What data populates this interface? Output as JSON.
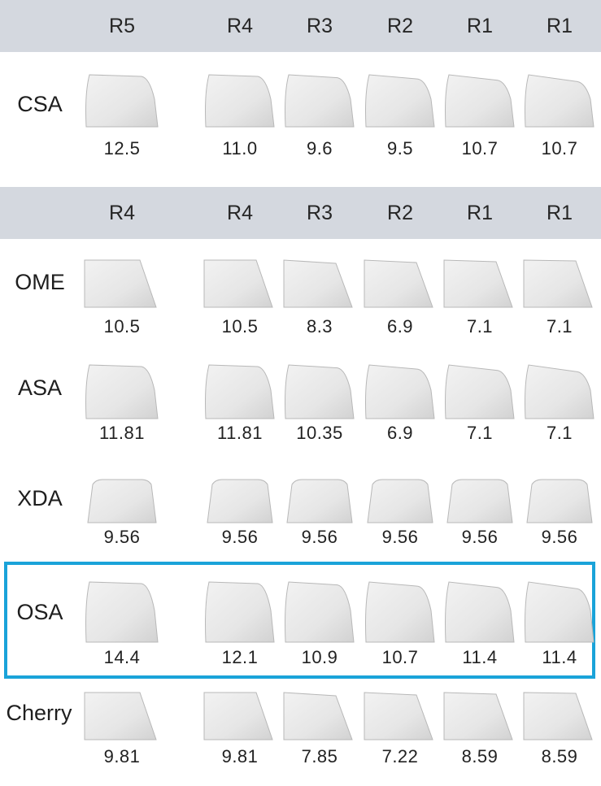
{
  "headers": [
    [
      "R5",
      "R4",
      "R3",
      "R2",
      "R1",
      "R1"
    ],
    [
      "R4",
      "R4",
      "R3",
      "R2",
      "R1",
      "R1"
    ]
  ],
  "rows": [
    {
      "profile": "CSA",
      "values": [
        "12.5",
        "11.0",
        "9.6",
        "9.5",
        "10.7",
        "10.7"
      ]
    },
    {
      "profile": "OME",
      "values": [
        "10.5",
        "10.5",
        "8.3",
        "6.9",
        "7.1",
        "7.1"
      ]
    },
    {
      "profile": "ASA",
      "values": [
        "11.81",
        "11.81",
        "10.35",
        "6.9",
        "7.1",
        "7.1"
      ]
    },
    {
      "profile": "XDA",
      "values": [
        "9.56",
        "9.56",
        "9.56",
        "9.56",
        "9.56",
        "9.56"
      ]
    },
    {
      "profile": "OSA",
      "values": [
        "14.4",
        "12.1",
        "10.9",
        "10.7",
        "11.4",
        "11.4"
      ],
      "highlighted": true
    },
    {
      "profile": "Cherry",
      "values": [
        "9.81",
        "9.81",
        "7.85",
        "7.22",
        "8.59",
        "8.59"
      ]
    }
  ],
  "colors": {
    "header_band": "#d4d8df",
    "keycap_fill": "#e6e6e6",
    "keycap_edge": "#b8b8b8",
    "highlight": "#1aa3d9"
  }
}
